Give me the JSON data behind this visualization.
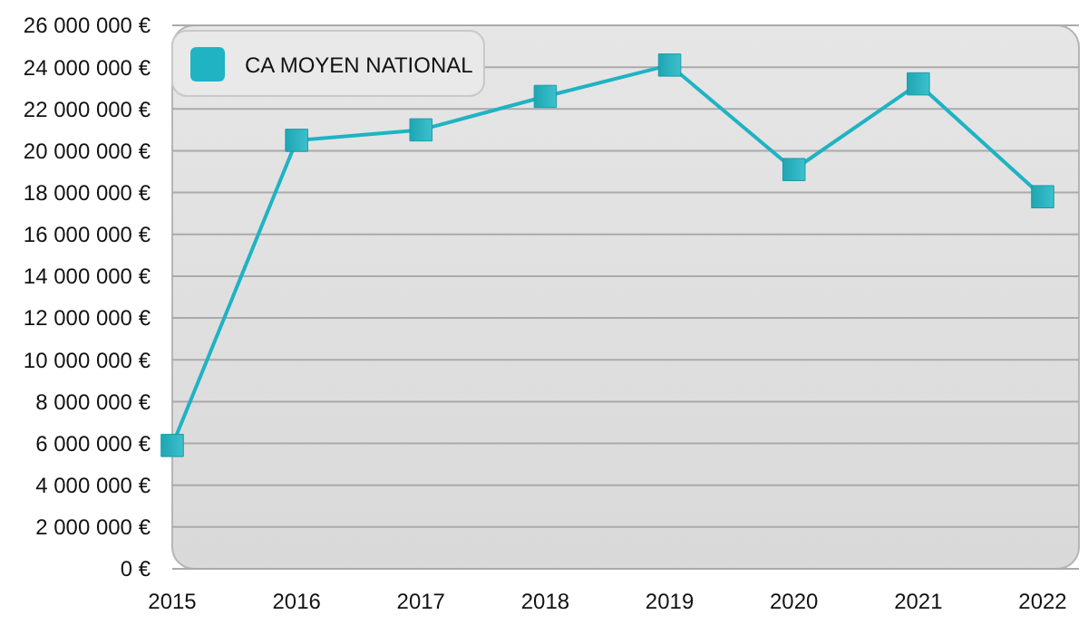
{
  "chart_data": {
    "type": "line",
    "categories": [
      "2015",
      "2016",
      "2017",
      "2018",
      "2019",
      "2020",
      "2021",
      "2022"
    ],
    "series": [
      {
        "name": "CA MOYEN NATIONAL",
        "color": "#1fb3c3",
        "values": [
          5900000,
          20500000,
          21000000,
          22600000,
          24100000,
          19100000,
          23200000,
          17800000
        ]
      }
    ],
    "ylim": [
      0,
      26000000
    ],
    "yticks": [
      {
        "value": 0,
        "label": "0 €"
      },
      {
        "value": 2000000,
        "label": "2 000 000 €"
      },
      {
        "value": 4000000,
        "label": "4 000 000 €"
      },
      {
        "value": 6000000,
        "label": "6 000 000 €"
      },
      {
        "value": 8000000,
        "label": "8 000 000 €"
      },
      {
        "value": 10000000,
        "label": "10 000 000 €"
      },
      {
        "value": 12000000,
        "label": "12 000 000 €"
      },
      {
        "value": 14000000,
        "label": "14 000 000 €"
      },
      {
        "value": 16000000,
        "label": "16 000 000 €"
      },
      {
        "value": 18000000,
        "label": "18 000 000 €"
      },
      {
        "value": 20000000,
        "label": "20 000 000 €"
      },
      {
        "value": 22000000,
        "label": "22 000 000 €"
      },
      {
        "value": 24000000,
        "label": "24 000 000 €"
      },
      {
        "value": 26000000,
        "label": "26 000 000 €"
      }
    ],
    "grid": "y",
    "legend": "top left",
    "marker": "square",
    "line_style": "solid"
  }
}
